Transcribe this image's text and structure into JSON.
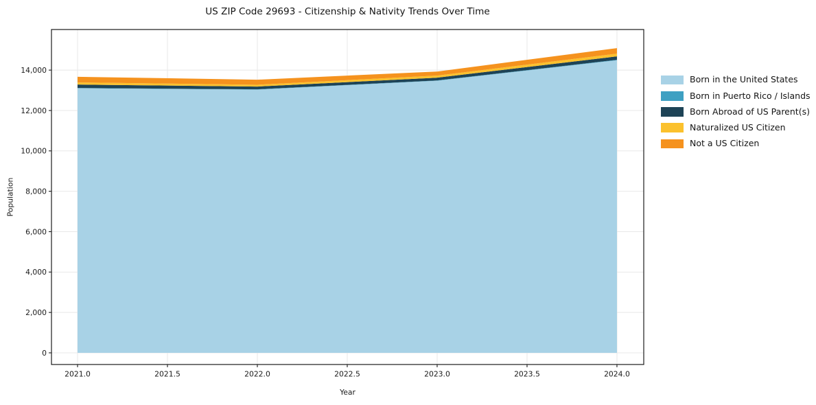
{
  "title": "US ZIP Code 29693 - Citizenship & Nativity Trends Over Time",
  "chart_data": {
    "type": "area",
    "stacked": true,
    "title": "US ZIP Code 29693 - Citizenship & Nativity Trends Over Time",
    "xlabel": "Year",
    "ylabel": "Population",
    "x": [
      2021,
      2022,
      2023,
      2024
    ],
    "series": [
      {
        "name": "Born in the United States",
        "color": "#a8d2e6",
        "values": [
          13100,
          13035,
          13475,
          14490
        ]
      },
      {
        "name": "Born in Puerto Rico / Islands",
        "color": "#3ea0c2",
        "values": [
          15,
          15,
          15,
          20
        ]
      },
      {
        "name": "Born Abroad of US Parent(s)",
        "color": "#1e4356",
        "values": [
          170,
          135,
          135,
          170
        ]
      },
      {
        "name": "Naturalized US Citizen",
        "color": "#fbc12d",
        "values": [
          105,
          90,
          105,
          135
        ]
      },
      {
        "name": "Not a US Citizen",
        "color": "#f5921e",
        "values": [
          280,
          250,
          200,
          275
        ]
      }
    ],
    "xticks": [
      2021.0,
      2021.5,
      2022.0,
      2022.5,
      2023.0,
      2023.5,
      2024.0
    ],
    "xtick_labels": [
      "2021.0",
      "2021.5",
      "2022.0",
      "2022.5",
      "2023.0",
      "2023.5",
      "2024.0"
    ],
    "yticks": [
      0,
      2000,
      4000,
      6000,
      8000,
      10000,
      12000,
      14000
    ],
    "ytick_labels": [
      "0",
      "2,000",
      "4,000",
      "6,000",
      "8,000",
      "10,000",
      "12,000",
      "14,000"
    ],
    "xlim": [
      2020.855,
      2024.149
    ],
    "ylim": [
      -578,
      16010
    ],
    "grid": true,
    "legend_position": "right",
    "colors": {
      "grid": "#e8e8e8",
      "frame": "#1a1a1a",
      "background": "#ffffff",
      "text": "#1a1a1a"
    }
  }
}
